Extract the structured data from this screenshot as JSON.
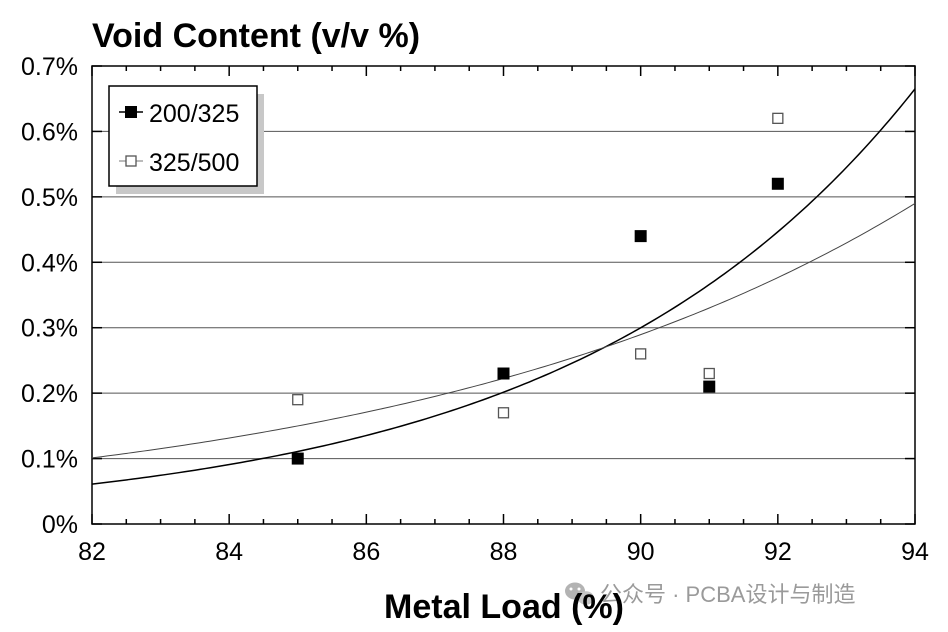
{
  "chart_data": {
    "type": "scatter",
    "title": "Void Content (v/v %)",
    "xlabel": "Metal Load (%)",
    "ylabel": "",
    "xlim": [
      82,
      94
    ],
    "ylim": [
      0,
      0.7
    ],
    "xticks": [
      82,
      84,
      86,
      88,
      90,
      92,
      94
    ],
    "xtick_labels": [
      "82",
      "84",
      "86",
      "88",
      "90",
      "92",
      "94"
    ],
    "yticks": [
      0,
      0.1,
      0.2,
      0.3,
      0.4,
      0.5,
      0.6,
      0.7
    ],
    "ytick_labels": [
      "0%",
      "0.1%",
      "0.2%",
      "0.3%",
      "0.4%",
      "0.5%",
      "0.6%",
      "0.7%"
    ],
    "grid": "horizontal",
    "legend_position": "top-left",
    "series": [
      {
        "name": "200/325",
        "marker": "filled-square",
        "color": "#000000",
        "points": [
          {
            "x": 85,
            "y": 0.1
          },
          {
            "x": 88,
            "y": 0.23
          },
          {
            "x": 90,
            "y": 0.44
          },
          {
            "x": 91,
            "y": 0.21
          },
          {
            "x": 92,
            "y": 0.52
          }
        ],
        "trendline": {
          "type": "exponential",
          "x_start": 82,
          "y_start": 0.061,
          "x_end": 94,
          "y_end": 0.665
        }
      },
      {
        "name": "325/500",
        "marker": "open-square",
        "color": "#555555",
        "points": [
          {
            "x": 85,
            "y": 0.19
          },
          {
            "x": 88,
            "y": 0.17
          },
          {
            "x": 90,
            "y": 0.26
          },
          {
            "x": 91,
            "y": 0.23
          },
          {
            "x": 92,
            "y": 0.62
          }
        ],
        "trendline": {
          "type": "exponential",
          "x_start": 82,
          "y_start": 0.101,
          "x_end": 94,
          "y_end": 0.49
        }
      }
    ]
  },
  "watermark": {
    "text": "公众号 · PCBA设计与制造",
    "icon": "wechat-icon"
  }
}
